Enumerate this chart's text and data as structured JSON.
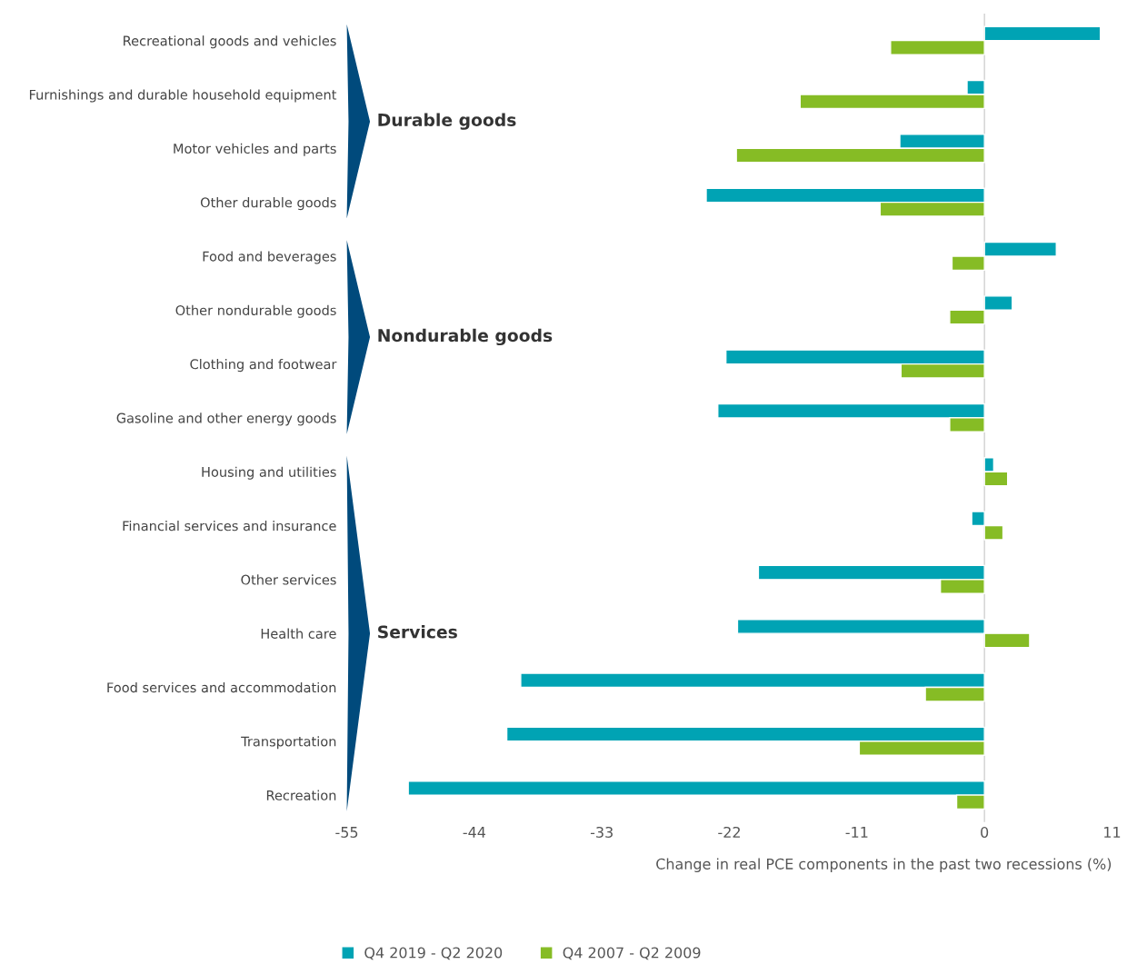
{
  "chart_data": {
    "type": "bar",
    "orientation": "horizontal",
    "categories": [
      "Recreational goods and vehicles",
      "Furnishings and durable household equipment",
      "Motor vehicles and parts",
      "Other durable goods",
      "Food and beverages",
      "Other nondurable goods",
      "Clothing and footwear",
      "Gasoline and other energy goods",
      "Housing and utilities",
      "Financial services and insurance",
      "Other services",
      "Health care",
      "Food services and accommodation",
      "Transportation",
      "Recreation"
    ],
    "series": [
      {
        "name": "Q4 2019 - Q2 2020",
        "color": "#00a3b4",
        "values": [
          10.0,
          -1.5,
          -7.3,
          -24.0,
          6.2,
          2.4,
          -22.3,
          -23.0,
          0.8,
          -1.1,
          -19.5,
          -21.3,
          -40.0,
          -41.2,
          -49.7
        ]
      },
      {
        "name": "Q4 2007 - Q2 2009",
        "color": "#86bc25",
        "values": [
          -8.1,
          -15.9,
          -21.4,
          -9.0,
          -2.8,
          -3.0,
          -7.2,
          -3.0,
          2.0,
          1.6,
          -3.8,
          3.9,
          -5.1,
          -10.8,
          -2.4
        ]
      }
    ],
    "xlabel": "Change in real PCE components in the past two recessions (%)",
    "xlim": [
      -55,
      11
    ],
    "xticks": [
      -55,
      -44,
      -33,
      -22,
      -11,
      0,
      11
    ],
    "ref_lines": [
      {
        "axis": "x",
        "value": 0,
        "color": "#d0d0d0"
      }
    ],
    "annotations": [
      "Durable goods",
      "Nondurable goods",
      "Services"
    ],
    "legend": "bottom",
    "grid": false
  }
}
